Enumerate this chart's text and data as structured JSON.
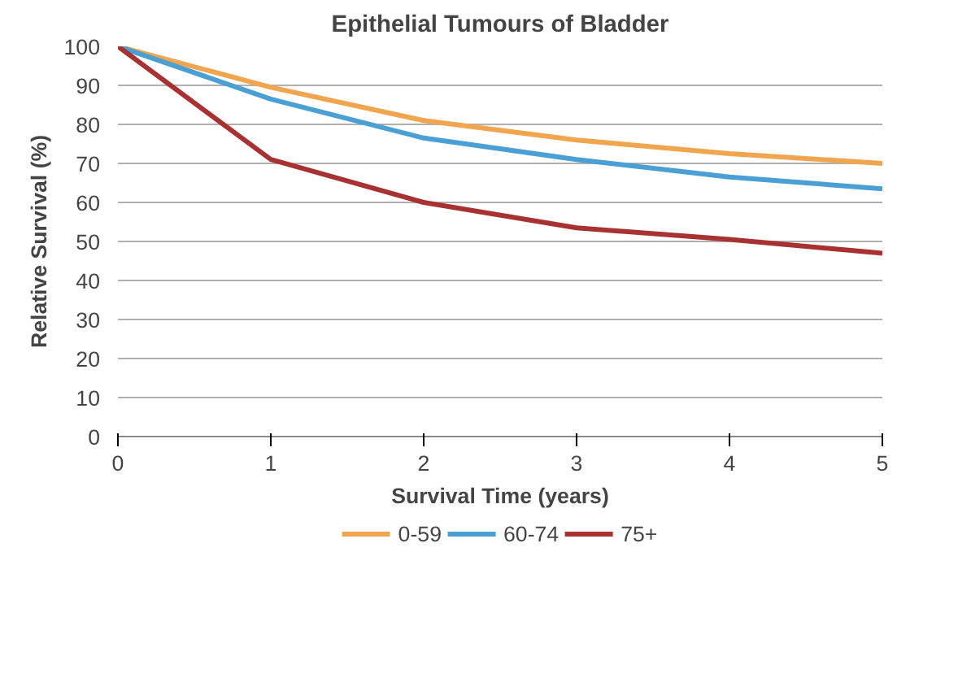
{
  "chart_data": {
    "type": "line",
    "title": "Epithelial Tumours of Bladder",
    "xlabel": "Survival Time (years)",
    "ylabel": "Relative Survival (%)",
    "x": [
      0,
      1,
      2,
      3,
      4,
      5
    ],
    "series": [
      {
        "name": "0-59",
        "color": "#f0a54e",
        "values": [
          100,
          89.5,
          81,
          76,
          72.5,
          70
        ]
      },
      {
        "name": "60-74",
        "color": "#4a9fd4",
        "values": [
          100,
          86.5,
          76.5,
          71,
          66.5,
          63.5
        ]
      },
      {
        "name": "75+",
        "color": "#a83232",
        "values": [
          100,
          71,
          60,
          53.5,
          50.5,
          47
        ]
      }
    ],
    "xlim": [
      0,
      5
    ],
    "ylim": [
      0,
      100
    ],
    "xticks": [
      0,
      1,
      2,
      3,
      4,
      5
    ],
    "yticks": [
      0,
      10,
      20,
      30,
      40,
      50,
      60,
      70,
      80,
      90,
      100
    ],
    "grid": "y",
    "legend": "bottom",
    "marker": "none",
    "line_style": "solid"
  }
}
